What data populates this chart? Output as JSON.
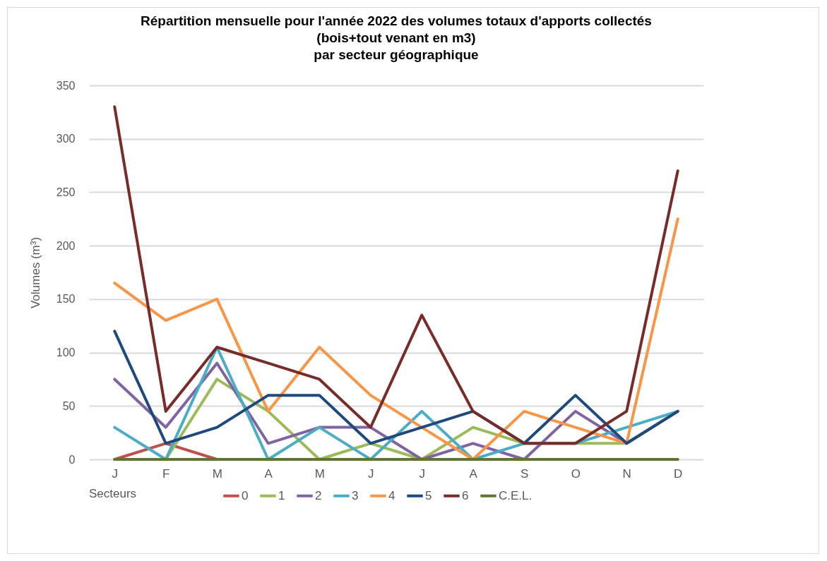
{
  "chart_data": {
    "type": "line",
    "title": "Répartition mensuelle pour l'année 2022 des volumes totaux d'apports collectés\n(bois+tout venant en m3)\npar secteur géographique",
    "ylabel": "Volumes (m³)",
    "legend_title": "Secteurs",
    "categories": [
      "J",
      "F",
      "M",
      "A",
      "M",
      "J",
      "J",
      "A",
      "S",
      "O",
      "N",
      "D"
    ],
    "ylim": [
      0,
      350
    ],
    "yticks": [
      0,
      50,
      100,
      150,
      200,
      250,
      300,
      350
    ],
    "grid": "y",
    "legend": "bottom",
    "line_style": "solid",
    "marker": "none",
    "series": [
      {
        "name": "0",
        "color": "#c0504d",
        "values": [
          0,
          15,
          0,
          null,
          null,
          null,
          null,
          null,
          null,
          null,
          null,
          null
        ]
      },
      {
        "name": "1",
        "color": "#9bbb59",
        "values": [
          0,
          0,
          75,
          45,
          0,
          15,
          0,
          30,
          15,
          15,
          15,
          45
        ]
      },
      {
        "name": "2",
        "color": "#8064a2",
        "values": [
          75,
          30,
          90,
          15,
          30,
          30,
          0,
          15,
          0,
          45,
          15,
          45
        ]
      },
      {
        "name": "3",
        "color": "#4bacc6",
        "values": [
          30,
          0,
          105,
          0,
          30,
          0,
          45,
          0,
          15,
          15,
          30,
          45
        ]
      },
      {
        "name": "4",
        "color": "#f79646",
        "values": [
          165,
          130,
          150,
          45,
          105,
          60,
          30,
          0,
          45,
          30,
          15,
          225
        ]
      },
      {
        "name": "5",
        "color": "#1f497d",
        "values": [
          120,
          15,
          30,
          60,
          60,
          15,
          30,
          45,
          15,
          60,
          15,
          45
        ]
      },
      {
        "name": "6",
        "color": "#772c2a",
        "values": [
          330,
          45,
          105,
          90,
          75,
          30,
          135,
          45,
          15,
          15,
          45,
          270
        ]
      },
      {
        "name": "C.E.L.",
        "color": "#5f7530",
        "values": [
          0,
          0,
          0,
          0,
          0,
          0,
          0,
          0,
          0,
          0,
          0,
          0
        ]
      }
    ]
  }
}
